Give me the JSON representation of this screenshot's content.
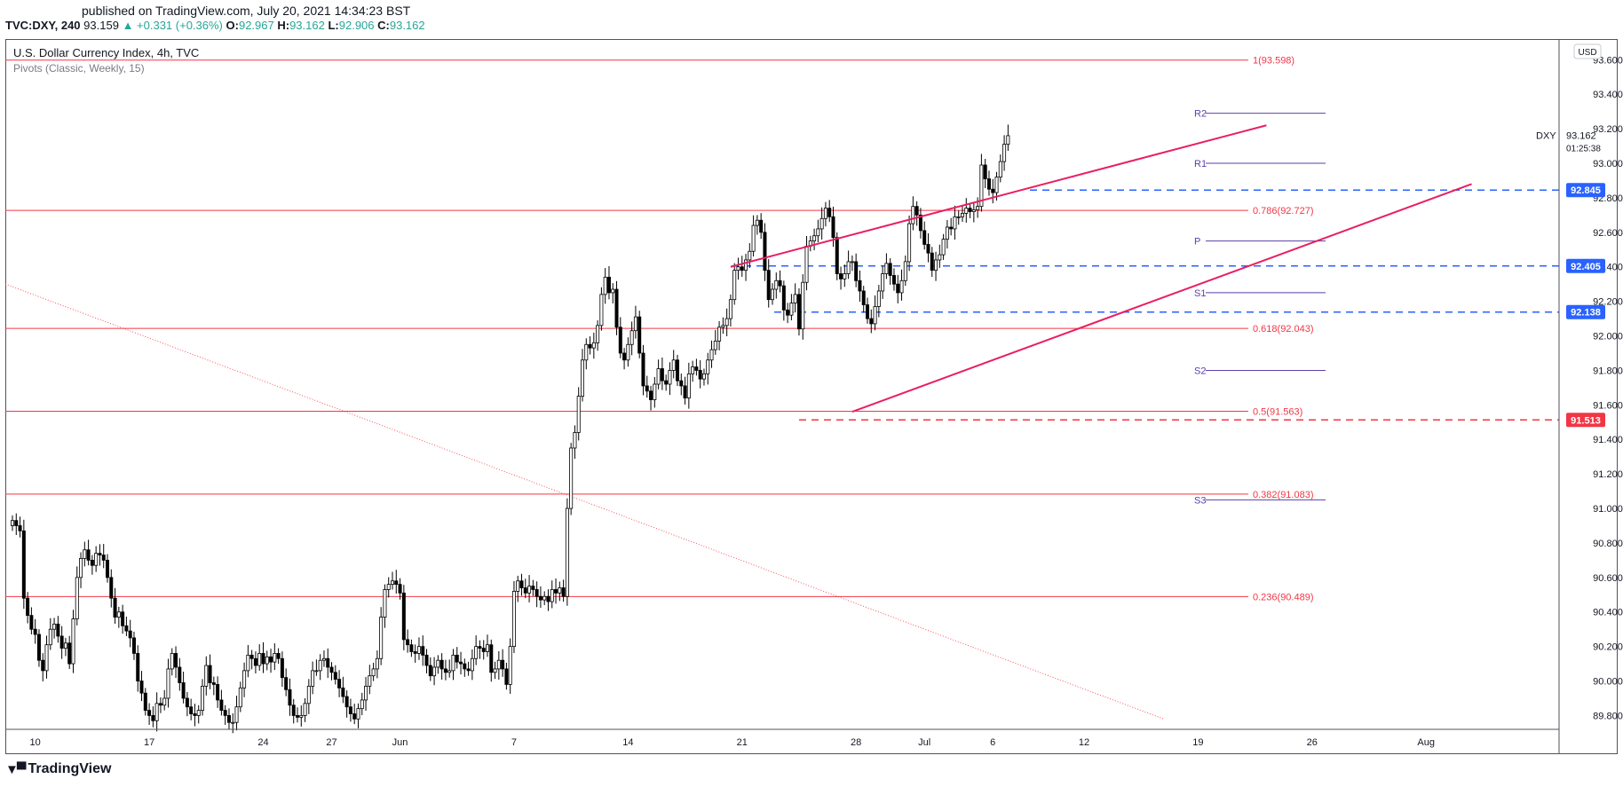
{
  "header": {
    "published": "published on TradingView.com, July 20, 2021 14:34:23 BST",
    "symbol_tf": "TVC:DXY, 240",
    "last": "93.159",
    "change": "▲ +0.331 (+0.36%)",
    "o_key": "O:",
    "o_val": "92.967",
    "h_key": "H:",
    "h_val": "93.162",
    "l_key": "L:",
    "l_val": "92.906",
    "c_key": "C:",
    "c_val": "93.162"
  },
  "legend": {
    "title": "U.S. Dollar Currency Index, 4h, TVC",
    "indicator": "Pivots (Classic, Weekly, 15)"
  },
  "currency_badge": "USD",
  "footer": {
    "brand": "TradingView"
  },
  "chart_data": {
    "type": "candlestick",
    "title": "U.S. Dollar Currency Index, 4h, TVC",
    "ylim": [
      89.72,
      93.72
    ],
    "price_ticks": [
      "93.600",
      "93.400",
      "93.200",
      "93.000",
      "92.800",
      "92.600",
      "92.400",
      "92.200",
      "92.000",
      "91.800",
      "91.600",
      "91.400",
      "91.200",
      "91.000",
      "90.800",
      "90.600",
      "90.400",
      "90.200",
      "90.000",
      "89.800"
    ],
    "time_ticks": [
      {
        "label": "10",
        "bar": 6
      },
      {
        "label": "17",
        "bar": 36
      },
      {
        "label": "24",
        "bar": 66
      },
      {
        "label": "27",
        "bar": 84
      },
      {
        "label": "Jun",
        "bar": 102
      },
      {
        "label": "7",
        "bar": 132
      },
      {
        "label": "14",
        "bar": 162
      },
      {
        "label": "21",
        "bar": 192
      },
      {
        "label": "28",
        "bar": 222
      },
      {
        "label": "Jul",
        "bar": 240
      },
      {
        "label": "6",
        "bar": 258
      },
      {
        "label": "12",
        "bar": 282
      },
      {
        "label": "19",
        "bar": 312
      },
      {
        "label": "26",
        "bar": 342
      },
      {
        "label": "Aug",
        "bar": 372
      }
    ],
    "fib_levels": [
      {
        "label": "1(93.598)",
        "value": 93.598
      },
      {
        "label": "0.786(92.727)",
        "value": 92.727
      },
      {
        "label": "0.618(92.043)",
        "value": 92.043
      },
      {
        "label": "0.5(91.563)",
        "value": 91.563
      },
      {
        "label": "0.382(91.083)",
        "value": 91.083
      },
      {
        "label": "0.236(90.489)",
        "value": 90.489
      }
    ],
    "pivots": [
      {
        "label": "R2",
        "value": 93.29
      },
      {
        "label": "R1",
        "value": 93.0
      },
      {
        "label": "P",
        "value": 92.55
      },
      {
        "label": "S1",
        "value": 92.25
      },
      {
        "label": "S2",
        "value": 91.8
      },
      {
        "label": "S3",
        "value": 91.05
      }
    ],
    "price_labels": [
      {
        "label": "92.845",
        "value": 92.845,
        "color": "#2962ff"
      },
      {
        "label": "92.405",
        "value": 92.405,
        "color": "#2962ff"
      },
      {
        "label": "92.138",
        "value": 92.138,
        "color": "#2962ff"
      },
      {
        "label": "91.513",
        "value": 91.513,
        "color": "#f23645"
      }
    ],
    "last_price": {
      "symbol": "DXY",
      "value": "93.162",
      "countdown": "01:25:38",
      "y": 93.162
    },
    "trendlines": [
      {
        "name": "channel-upper",
        "from": [
          189,
          92.4
        ],
        "to": [
          330,
          93.22
        ]
      },
      {
        "name": "channel-lower",
        "from": [
          221,
          91.56
        ],
        "to": [
          384,
          92.88
        ]
      },
      {
        "name": "long-term-downtrend",
        "from": [
          0,
          92.3
        ],
        "to": [
          303,
          89.78
        ]
      }
    ],
    "closes": [
      90.93,
      90.9,
      90.87,
      90.48,
      90.38,
      90.3,
      90.27,
      90.12,
      90.06,
      90.21,
      90.3,
      90.33,
      90.26,
      90.19,
      90.22,
      90.1,
      90.36,
      90.6,
      90.71,
      90.76,
      90.7,
      90.67,
      90.74,
      90.73,
      90.7,
      90.6,
      90.48,
      90.37,
      90.4,
      90.32,
      90.29,
      90.25,
      90.16,
      90.0,
      89.93,
      89.83,
      89.8,
      89.77,
      89.87,
      89.86,
      89.9,
      90.07,
      90.16,
      90.08,
      89.99,
      89.9,
      89.85,
      89.81,
      89.8,
      89.83,
      89.97,
      90.09,
      89.99,
      89.98,
      89.89,
      89.83,
      89.8,
      89.76,
      89.76,
      89.85,
      89.96,
      90.06,
      90.15,
      90.13,
      90.09,
      90.16,
      90.1,
      90.14,
      90.11,
      90.16,
      90.13,
      90.02,
      89.95,
      89.86,
      89.8,
      89.79,
      89.8,
      89.87,
      89.97,
      90.06,
      90.06,
      90.12,
      90.13,
      90.08,
      90.05,
      90.01,
      89.96,
      89.91,
      89.85,
      89.81,
      89.78,
      89.84,
      89.89,
      89.97,
      90.03,
      90.07,
      90.13,
      90.37,
      90.53,
      90.56,
      90.58,
      90.56,
      90.51,
      90.24,
      90.21,
      90.17,
      90.16,
      90.2,
      90.15,
      90.09,
      90.03,
      90.08,
      90.12,
      90.07,
      90.05,
      90.06,
      90.15,
      90.11,
      90.1,
      90.07,
      90.06,
      90.13,
      90.2,
      90.19,
      90.17,
      90.21,
      90.05,
      90.07,
      90.12,
      90.07,
      89.98,
      90.2,
      90.52,
      90.58,
      90.54,
      90.51,
      90.55,
      90.53,
      90.49,
      90.47,
      90.49,
      90.46,
      90.53,
      90.51,
      90.54,
      90.49,
      91.0,
      91.35,
      91.44,
      91.65,
      91.86,
      91.95,
      91.93,
      91.96,
      92.06,
      92.24,
      92.34,
      92.25,
      92.27,
      92.05,
      91.9,
      91.86,
      91.95,
      92.03,
      92.11,
      91.9,
      91.71,
      91.68,
      91.63,
      91.72,
      91.81,
      91.74,
      91.72,
      91.8,
      91.86,
      91.74,
      91.71,
      91.64,
      91.78,
      91.82,
      91.8,
      91.75,
      91.78,
      91.86,
      91.92,
      91.97,
      92.05,
      92.06,
      92.1,
      92.21,
      92.38,
      92.4,
      92.38,
      92.44,
      92.49,
      92.64,
      92.67,
      92.6,
      92.38,
      92.21,
      92.27,
      92.32,
      92.29,
      92.15,
      92.12,
      92.19,
      92.24,
      92.04,
      92.31,
      92.52,
      92.55,
      92.58,
      92.62,
      92.68,
      92.74,
      92.69,
      92.57,
      92.36,
      92.33,
      92.36,
      92.43,
      92.43,
      92.32,
      92.26,
      92.18,
      92.1,
      92.07,
      92.17,
      92.26,
      92.36,
      92.42,
      92.35,
      92.3,
      92.25,
      92.32,
      92.43,
      92.65,
      92.75,
      92.7,
      92.61,
      92.53,
      92.48,
      92.38,
      92.44,
      92.47,
      92.56,
      92.63,
      92.62,
      92.69,
      92.69,
      92.71,
      92.74,
      92.72,
      92.73,
      92.75,
      92.99,
      92.91,
      92.85,
      92.83,
      92.92,
      93.01,
      93.11,
      93.16
    ]
  }
}
